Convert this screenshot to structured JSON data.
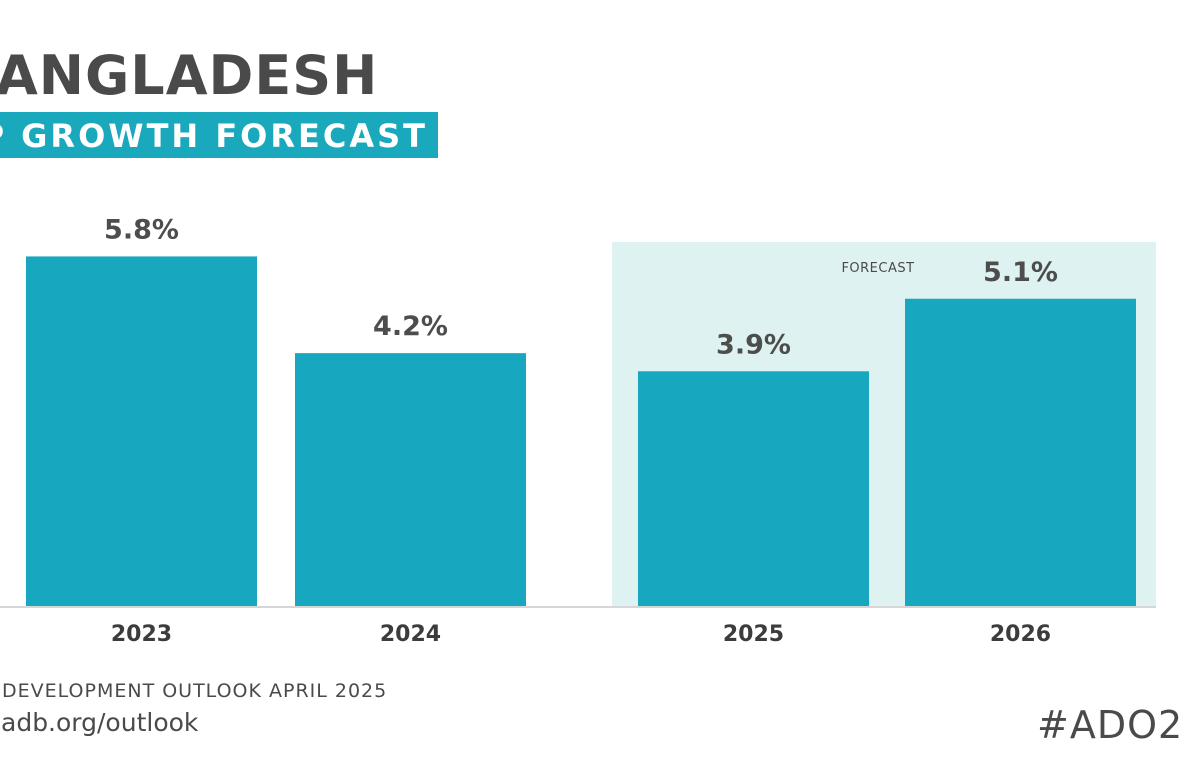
{
  "header": {
    "title": "ANGLADESH",
    "subtitle": "P GROWTH FORECAST"
  },
  "chart_data": {
    "type": "bar",
    "categories": [
      "2023",
      "2024",
      "2025",
      "2026"
    ],
    "values": [
      5.8,
      4.2,
      3.9,
      5.1
    ],
    "value_labels": [
      "5.8%",
      "4.2%",
      "3.9%",
      "5.1%"
    ],
    "forecast_label": "FORECAST",
    "forecast_categories": [
      "2025",
      "2026"
    ],
    "ylim": [
      0,
      6.8
    ],
    "grid": false,
    "legend": "none",
    "colors": {
      "bar": "#17a7be",
      "forecast_background": "#def2f1",
      "axis": "#d6d6d6"
    }
  },
  "footer": {
    "source": "DEVELOPMENT OUTLOOK APRIL 2025",
    "url": "adb.org/outlook",
    "hashtag": "#ADO2"
  }
}
